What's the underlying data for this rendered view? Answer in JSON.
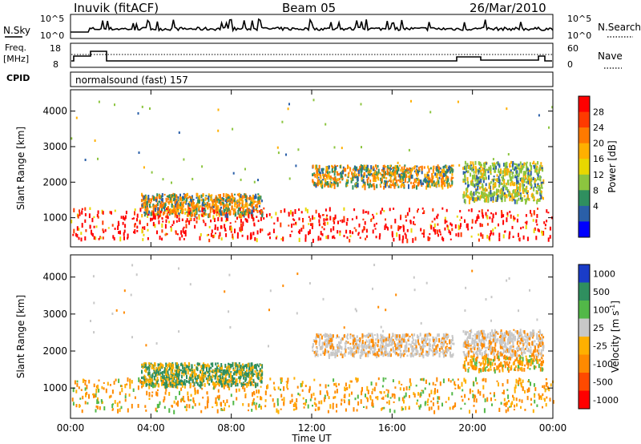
{
  "header": {
    "station": "Inuvik (fitACF)",
    "beam": "Beam 05",
    "date": "26/Mar/2010"
  },
  "panels": {
    "nsky": {
      "label": "N.Sky",
      "ticks_left": [
        "10^5",
        "10^0"
      ],
      "ticks_right": [
        "10^5",
        "10^0"
      ],
      "right_label": "N.Search"
    },
    "freq": {
      "label_line1": "Freq.",
      "label_line2": "[MHz]",
      "ticks_left": [
        "18",
        "8"
      ],
      "ticks_right": [
        "60",
        "0"
      ],
      "right_label": "Nave"
    },
    "cpid": {
      "label": "CPID",
      "text": "normalsound (fast) 157"
    }
  },
  "chart_data": [
    {
      "type": "heatmap",
      "name": "power",
      "ylabel": "Slant Range [km]",
      "xlabel": "Time UT",
      "xticks": [
        "00:00",
        "04:00",
        "08:00",
        "12:00",
        "16:00",
        "20:00",
        "00:00"
      ],
      "ylim": [
        180,
        4600
      ],
      "yticks": [
        1000,
        2000,
        3000,
        4000
      ],
      "colorbar": {
        "label": "Power [dB]",
        "ticks": [
          "28",
          "24",
          "20",
          "16",
          "12",
          "8",
          "4"
        ],
        "colors": [
          "#ff0000",
          "#ff3a00",
          "#ff7a00",
          "#ffb000",
          "#e8d800",
          "#8cc53f",
          "#2f8f5f",
          "#2a5fa8",
          "#0000ff"
        ]
      },
      "echo_bands": [
        {
          "t_start": 0,
          "t_end": 24,
          "range_lo": 400,
          "range_hi": 1300,
          "level": "strong"
        },
        {
          "t_start": 3.5,
          "t_end": 9.5,
          "range_lo": 1100,
          "range_hi": 1700,
          "level": "medium"
        },
        {
          "t_start": 12,
          "t_end": 19,
          "range_lo": 1900,
          "range_hi": 2500,
          "level": "medium"
        },
        {
          "t_start": 19.5,
          "t_end": 23.5,
          "range_lo": 1500,
          "range_hi": 2600,
          "level": "weak"
        }
      ]
    },
    {
      "type": "heatmap",
      "name": "velocity",
      "ylabel": "Slant Range [km]",
      "xlabel": "Time UT",
      "xticks": [
        "00:00",
        "04:00",
        "08:00",
        "12:00",
        "16:00",
        "20:00",
        "00:00"
      ],
      "ylim": [
        180,
        4600
      ],
      "yticks": [
        1000,
        2000,
        3000,
        4000
      ],
      "colorbar": {
        "label": "Velocity [m s",
        "label_sup": "-1",
        "label_end": "]",
        "ticks": [
          "1000",
          "500",
          "100",
          "25",
          "-25",
          "-100",
          "-500",
          "-1000"
        ],
        "colors": [
          "#1a3cc8",
          "#2f8f5f",
          "#52b848",
          "#c8c8c8",
          "#ffb000",
          "#ff8a00",
          "#ff4a00",
          "#ff0000"
        ]
      }
    }
  ]
}
